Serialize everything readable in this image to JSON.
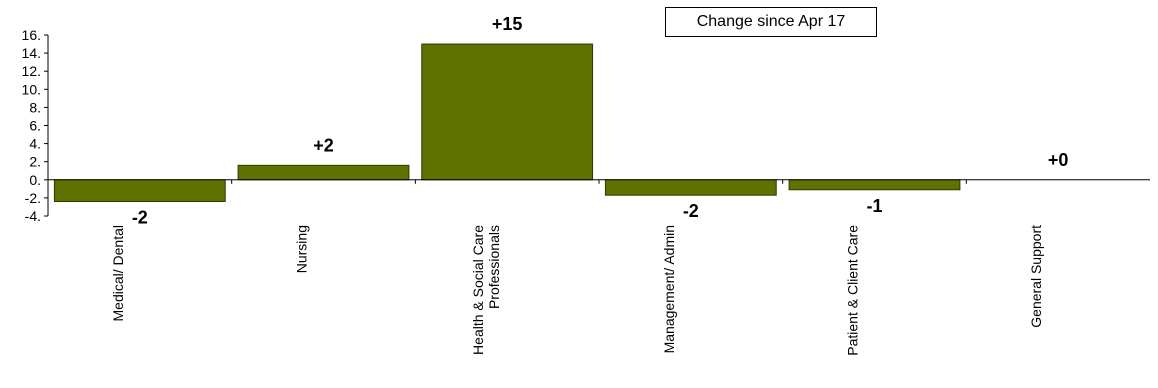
{
  "legend": {
    "label": "Change since Apr 17"
  },
  "colors": {
    "bar_fill": "#5f7200",
    "bar_stroke": "#2f3a00",
    "axis": "#000000"
  },
  "chart_data": {
    "type": "bar",
    "title": "",
    "xlabel": "",
    "ylabel": "",
    "ylim": [
      -4,
      16
    ],
    "grid": false,
    "legend_position": "top-right",
    "y_ticks": [
      "-4.",
      "-2.",
      "0.",
      "2.",
      "4.",
      "6.",
      "8.",
      "10.",
      "12.",
      "14.",
      "16."
    ],
    "categories": [
      "Medical/ Dental",
      "Nursing",
      "Health & Social Care Professionals",
      "Management/ Admin",
      "Patient & Client Care",
      "General Support"
    ],
    "series": [
      {
        "name": "Change since Apr 17",
        "values": [
          -2.4,
          1.6,
          15.0,
          -1.7,
          -1.1,
          0.0
        ],
        "data_labels": [
          "-2",
          "+2",
          "+15",
          "-2",
          "-1",
          "+0"
        ]
      }
    ]
  }
}
